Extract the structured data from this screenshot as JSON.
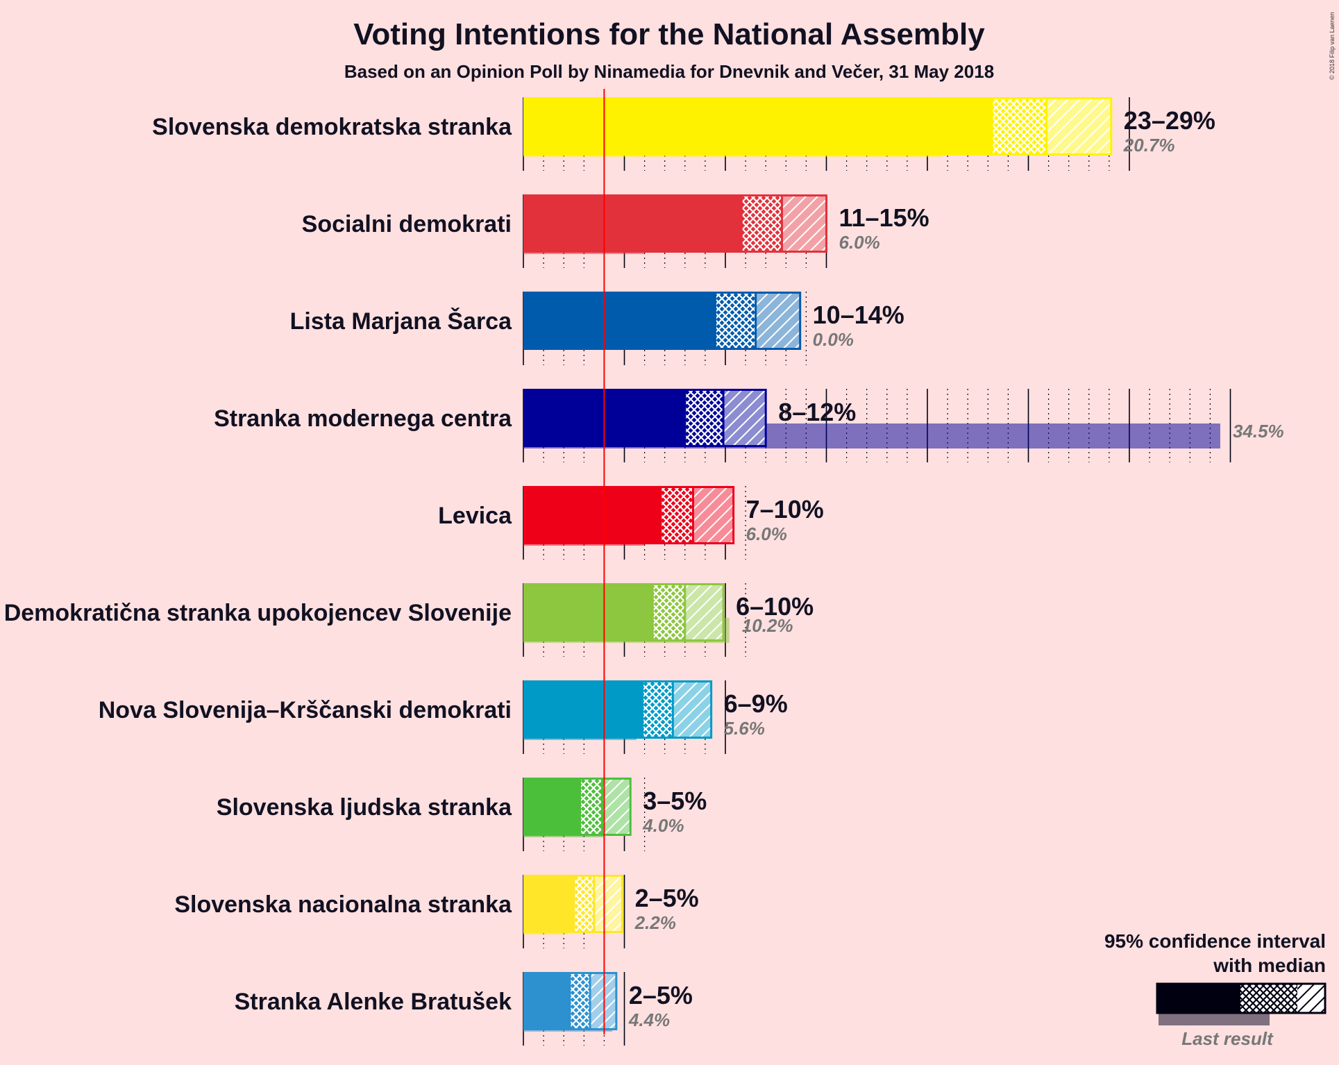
{
  "chart_data": {
    "type": "bar",
    "title": "Voting Intentions for the National Assembly",
    "subtitle": "Based on an Opinion Poll by Ninamedia for Dnevnik and Večer, 31 May 2018",
    "copyright": "© 2018 Filip van Laenen",
    "threshold": 4,
    "x_range": [
      0,
      35
    ],
    "series": [
      {
        "party": "Slovenska demokratska stranka",
        "label": "23–29%",
        "last_label": "20.7%",
        "low": 23.2,
        "q1": 23.2,
        "median": 25.9,
        "q3": 25.9,
        "high": 29.1,
        "last": 20.7,
        "color": "#FFF200"
      },
      {
        "party": "Socialni demokrati",
        "label": "11–15%",
        "last_label": "6.0%",
        "low": 10.8,
        "q1": 10.8,
        "median": 12.8,
        "q3": 12.8,
        "high": 15.0,
        "last": 6.0,
        "color": "#E3313B"
      },
      {
        "party": "Lista Marjana Šarca",
        "label": "10–14%",
        "last_label": "0.0%",
        "low": 9.5,
        "q1": 9.5,
        "median": 11.5,
        "q3": 11.5,
        "high": 13.7,
        "last": 0.0,
        "color": "#005BAC"
      },
      {
        "party": "Stranka modernega centra",
        "label": "8–12%",
        "last_label": "34.5%",
        "low": 8.0,
        "q1": 8.0,
        "median": 9.9,
        "q3": 9.9,
        "high": 12.0,
        "last": 34.5,
        "color": "#000099"
      },
      {
        "party": "Levica",
        "label": "7–10%",
        "last_label": "6.0%",
        "low": 6.8,
        "q1": 6.8,
        "median": 8.4,
        "q3": 8.4,
        "high": 10.4,
        "last": 6.0,
        "color": "#EE0019"
      },
      {
        "party": "Demokratična stranka upokojencev Slovenije",
        "label": "6–10%",
        "last_label": "10.2%",
        "low": 6.4,
        "q1": 6.4,
        "median": 8.0,
        "q3": 8.0,
        "high": 9.9,
        "last": 10.2,
        "color": "#8DC63F"
      },
      {
        "party": "Nova Slovenija–Krščanski demokrati",
        "label": "6–9%",
        "last_label": "5.6%",
        "low": 5.9,
        "q1": 5.9,
        "median": 7.4,
        "q3": 7.4,
        "high": 9.3,
        "last": 5.6,
        "color": "#009AC7"
      },
      {
        "party": "Slovenska ljudska stranka",
        "label": "3–5%",
        "last_label": "4.0%",
        "low": 2.8,
        "q1": 2.8,
        "median": 3.9,
        "q3": 3.9,
        "high": 5.3,
        "last": 4.0,
        "color": "#4CBF3A"
      },
      {
        "party": "Slovenska nacionalna stranka",
        "label": "2–5%",
        "last_label": "2.2%",
        "low": 2.5,
        "q1": 2.5,
        "median": 3.5,
        "q3": 3.5,
        "high": 4.9,
        "last": 2.2,
        "color": "#FFE629"
      },
      {
        "party": "Stranka Alenke Bratušek",
        "label": "2–5%",
        "last_label": "4.4%",
        "low": 2.3,
        "q1": 2.3,
        "median": 3.3,
        "q3": 3.3,
        "high": 4.6,
        "last": 4.4,
        "color": "#2D91D0"
      }
    ],
    "legend": {
      "line1": "95% confidence interval",
      "line2": "with median",
      "last": "Last result",
      "placement": "bottom-right"
    }
  }
}
